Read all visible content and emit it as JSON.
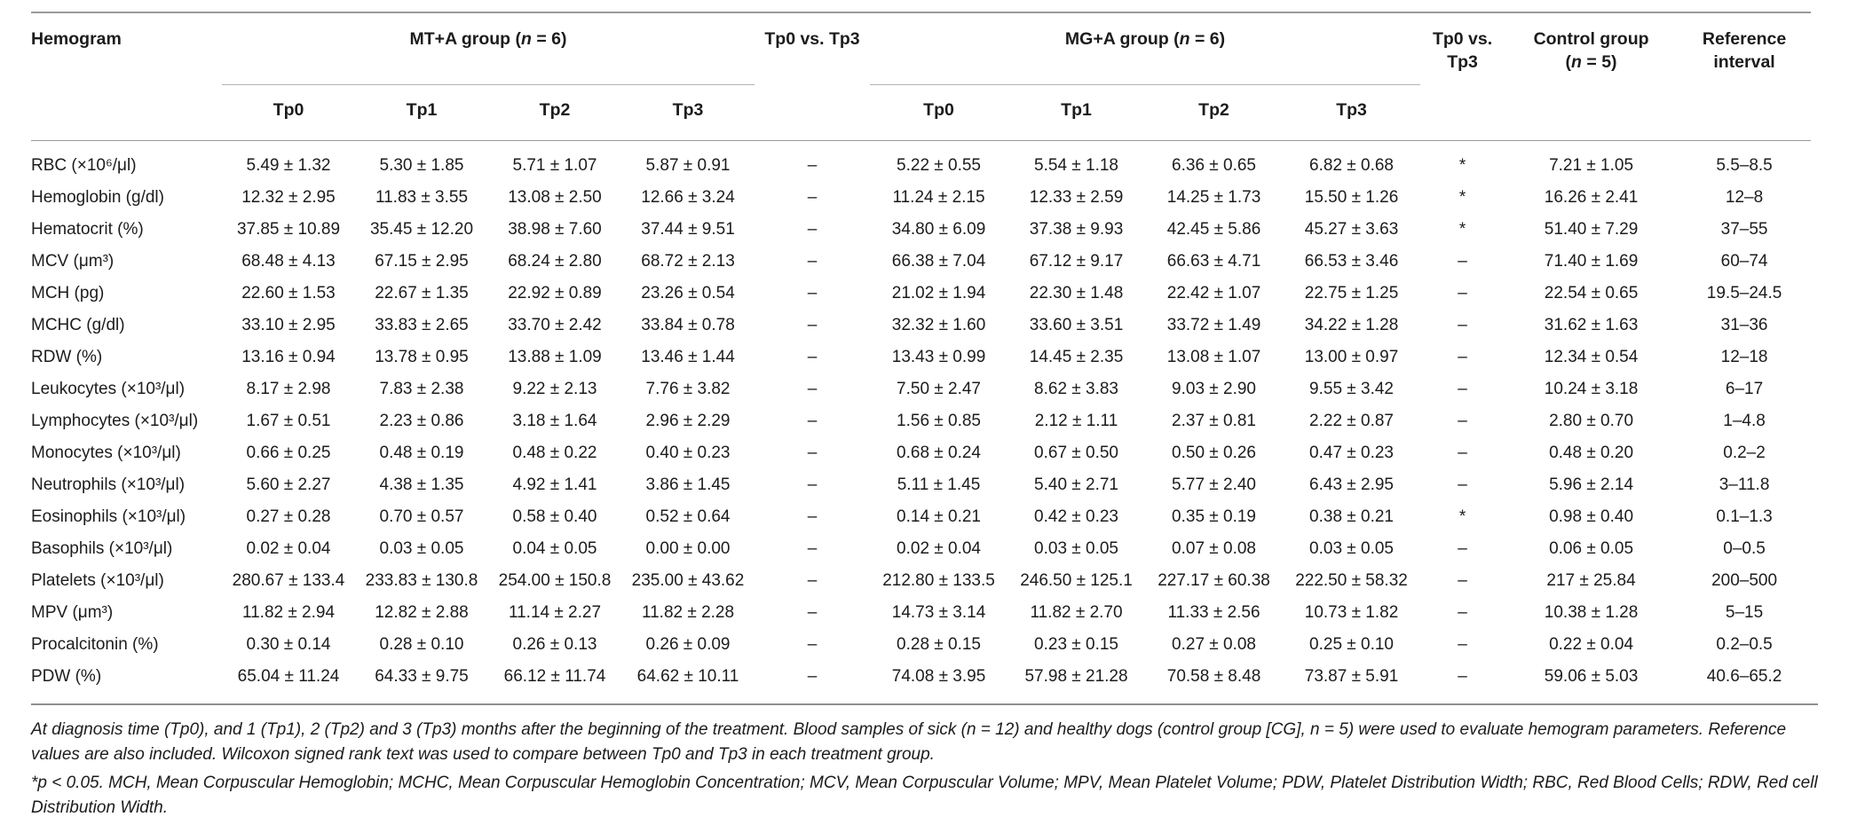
{
  "table": {
    "col1_header": "Hemogram",
    "groups": [
      {
        "prefix": "MT+A group (",
        "n": "n",
        "suffix": " = 6)"
      },
      {
        "prefix": "MG+A group (",
        "n": "n",
        "suffix": " = 6)"
      }
    ],
    "vs_header_1": "Tp0 vs. Tp3",
    "vs_header_2": "Tp0 vs. Tp3",
    "control_header_line1": "Control group",
    "control_header_line2": {
      "prefix": "(",
      "n": "n",
      "suffix": " = 5)"
    },
    "reference_header_line1": "Reference",
    "reference_header_line2": "interval",
    "subheaders": [
      "Tp0",
      "Tp1",
      "Tp2",
      "Tp3"
    ],
    "rows": [
      {
        "label": "RBC (×10⁶/μl)",
        "mt": [
          "5.49 ± 1.32",
          "5.30 ± 1.85",
          "5.71 ± 1.07",
          "5.87 ± 0.91"
        ],
        "sig1": "–",
        "mg": [
          "5.22 ± 0.55",
          "5.54 ± 1.18",
          "6.36 ± 0.65",
          "6.82 ± 0.68"
        ],
        "sig2": "*",
        "control": "7.21 ± 1.05",
        "reference": "5.5–8.5"
      },
      {
        "label": "Hemoglobin (g/dl)",
        "mt": [
          "12.32 ± 2.95",
          "11.83 ± 3.55",
          "13.08 ± 2.50",
          "12.66 ± 3.24"
        ],
        "sig1": "–",
        "mg": [
          "11.24 ± 2.15",
          "12.33 ± 2.59",
          "14.25 ± 1.73",
          "15.50 ± 1.26"
        ],
        "sig2": "*",
        "control": "16.26 ± 2.41",
        "reference": "12–8"
      },
      {
        "label": "Hematocrit (%)",
        "mt": [
          "37.85 ± 10.89",
          "35.45 ± 12.20",
          "38.98 ± 7.60",
          "37.44 ± 9.51"
        ],
        "sig1": "–",
        "mg": [
          "34.80 ± 6.09",
          "37.38 ± 9.93",
          "42.45 ± 5.86",
          "45.27 ± 3.63"
        ],
        "sig2": "*",
        "control": "51.40 ± 7.29",
        "reference": "37–55"
      },
      {
        "label": "MCV (μm³)",
        "mt": [
          "68.48 ± 4.13",
          "67.15 ± 2.95",
          "68.24 ± 2.80",
          "68.72 ± 2.13"
        ],
        "sig1": "–",
        "mg": [
          "66.38 ± 7.04",
          "67.12 ± 9.17",
          "66.63 ± 4.71",
          "66.53 ± 3.46"
        ],
        "sig2": "–",
        "control": "71.40 ± 1.69",
        "reference": "60–74"
      },
      {
        "label": "MCH (pg)",
        "mt": [
          "22.60 ± 1.53",
          "22.67 ± 1.35",
          "22.92 ± 0.89",
          "23.26 ± 0.54"
        ],
        "sig1": "–",
        "mg": [
          "21.02 ± 1.94",
          "22.30 ± 1.48",
          "22.42 ± 1.07",
          "22.75 ± 1.25"
        ],
        "sig2": "–",
        "control": "22.54 ± 0.65",
        "reference": "19.5–24.5"
      },
      {
        "label": "MCHC (g/dl)",
        "mt": [
          "33.10 ± 2.95",
          "33.83 ± 2.65",
          "33.70 ± 2.42",
          "33.84 ± 0.78"
        ],
        "sig1": "–",
        "mg": [
          "32.32 ± 1.60",
          "33.60 ± 3.51",
          "33.72 ± 1.49",
          "34.22 ± 1.28"
        ],
        "sig2": "–",
        "control": "31.62 ± 1.63",
        "reference": "31–36"
      },
      {
        "label": "RDW (%)",
        "mt": [
          "13.16 ± 0.94",
          "13.78 ± 0.95",
          "13.88 ± 1.09",
          "13.46 ± 1.44"
        ],
        "sig1": "–",
        "mg": [
          "13.43 ± 0.99",
          "14.45 ± 2.35",
          "13.08 ± 1.07",
          "13.00 ± 0.97"
        ],
        "sig2": "–",
        "control": "12.34 ± 0.54",
        "reference": "12–18"
      },
      {
        "label": "Leukocytes (×10³/μl)",
        "mt": [
          "8.17 ± 2.98",
          "7.83 ± 2.38",
          "9.22 ± 2.13",
          "7.76 ± 3.82"
        ],
        "sig1": "–",
        "mg": [
          "7.50 ± 2.47",
          "8.62 ± 3.83",
          "9.03 ± 2.90",
          "9.55 ± 3.42"
        ],
        "sig2": "–",
        "control": "10.24 ± 3.18",
        "reference": "6–17"
      },
      {
        "label": "Lymphocytes (×10³/μl)",
        "mt": [
          "1.67 ± 0.51",
          "2.23 ± 0.86",
          "3.18 ± 1.64",
          "2.96 ± 2.29"
        ],
        "sig1": "–",
        "mg": [
          "1.56 ± 0.85",
          "2.12 ± 1.11",
          "2.37 ± 0.81",
          "2.22 ± 0.87"
        ],
        "sig2": "–",
        "control": "2.80 ± 0.70",
        "reference": "1–4.8"
      },
      {
        "label": "Monocytes (×10³/μl)",
        "mt": [
          "0.66 ± 0.25",
          "0.48 ± 0.19",
          "0.48 ± 0.22",
          "0.40 ± 0.23"
        ],
        "sig1": "–",
        "mg": [
          "0.68 ± 0.24",
          "0.67 ± 0.50",
          "0.50 ± 0.26",
          "0.47 ± 0.23"
        ],
        "sig2": "–",
        "control": "0.48 ± 0.20",
        "reference": "0.2–2"
      },
      {
        "label": "Neutrophils (×10³/μl)",
        "mt": [
          "5.60 ± 2.27",
          "4.38 ± 1.35",
          "4.92 ± 1.41",
          "3.86 ± 1.45"
        ],
        "sig1": "–",
        "mg": [
          "5.11 ± 1.45",
          "5.40 ± 2.71",
          "5.77 ± 2.40",
          "6.43 ± 2.95"
        ],
        "sig2": "–",
        "control": "5.96 ± 2.14",
        "reference": "3–11.8"
      },
      {
        "label": "Eosinophils (×10³/μl)",
        "mt": [
          "0.27 ± 0.28",
          "0.70 ± 0.57",
          "0.58 ± 0.40",
          "0.52 ± 0.64"
        ],
        "sig1": "–",
        "mg": [
          "0.14 ± 0.21",
          "0.42 ± 0.23",
          "0.35 ± 0.19",
          "0.38 ± 0.21"
        ],
        "sig2": "*",
        "control": "0.98 ± 0.40",
        "reference": "0.1–1.3"
      },
      {
        "label": "Basophils (×10³/μl)",
        "mt": [
          "0.02 ± 0.04",
          "0.03 ± 0.05",
          "0.04 ± 0.05",
          "0.00 ± 0.00"
        ],
        "sig1": "–",
        "mg": [
          "0.02 ± 0.04",
          "0.03 ± 0.05",
          "0.07 ± 0.08",
          "0.03 ± 0.05"
        ],
        "sig2": "–",
        "control": "0.06 ± 0.05",
        "reference": "0–0.5"
      },
      {
        "label": "Platelets (×10³/μl)",
        "mt": [
          "280.67 ± 133.4",
          "233.83 ± 130.8",
          "254.00 ± 150.8",
          "235.00 ± 43.62"
        ],
        "sig1": "–",
        "mg": [
          "212.80 ± 133.5",
          "246.50 ± 125.1",
          "227.17 ± 60.38",
          "222.50 ± 58.32"
        ],
        "sig2": "–",
        "control": "217 ± 25.84",
        "reference": "200–500"
      },
      {
        "label": "MPV (μm³)",
        "mt": [
          "11.82 ± 2.94",
          "12.82 ± 2.88",
          "11.14 ± 2.27",
          "11.82 ± 2.28"
        ],
        "sig1": "–",
        "mg": [
          "14.73 ± 3.14",
          "11.82 ± 2.70",
          "11.33 ± 2.56",
          "10.73 ± 1.82"
        ],
        "sig2": "–",
        "control": "10.38 ± 1.28",
        "reference": "5–15"
      },
      {
        "label": "Procalcitonin (%)",
        "mt": [
          "0.30 ± 0.14",
          "0.28 ± 0.10",
          "0.26 ± 0.13",
          "0.26 ± 0.09"
        ],
        "sig1": "–",
        "mg": [
          "0.28 ± 0.15",
          "0.23 ± 0.15",
          "0.27 ± 0.08",
          "0.25 ± 0.10"
        ],
        "sig2": "–",
        "control": "0.22 ± 0.04",
        "reference": "0.2–0.5"
      },
      {
        "label": "PDW (%)",
        "mt": [
          "65.04 ± 11.24",
          "64.33 ± 9.75",
          "66.12 ± 11.74",
          "64.62 ± 10.11"
        ],
        "sig1": "–",
        "mg": [
          "74.08 ± 3.95",
          "57.98 ± 21.28",
          "70.58 ± 8.48",
          "73.87 ± 5.91"
        ],
        "sig2": "–",
        "control": "59.06 ± 5.03",
        "reference": "40.6–65.2"
      }
    ]
  },
  "footnotes": {
    "paragraph1": "At diagnosis time (Tp0), and 1 (Tp1), 2 (Tp2) and 3 (Tp3) months after the beginning of the treatment. Blood samples of sick (n = 12) and healthy dogs (control group [CG], n = 5) were used to evaluate hemogram parameters. Reference values are also included. Wilcoxon signed rank text was used to compare between Tp0 and Tp3 in each treatment group.",
    "paragraph2": "*p < 0.05. MCH, Mean Corpuscular Hemoglobin; MCHC, Mean Corpuscular Hemoglobin Concentration; MCV, Mean Corpuscular Volume; MPV, Mean Platelet Volume; PDW, Platelet Distribution Width; RBC, Red Blood Cells; RDW, Red cell Distribution Width."
  }
}
